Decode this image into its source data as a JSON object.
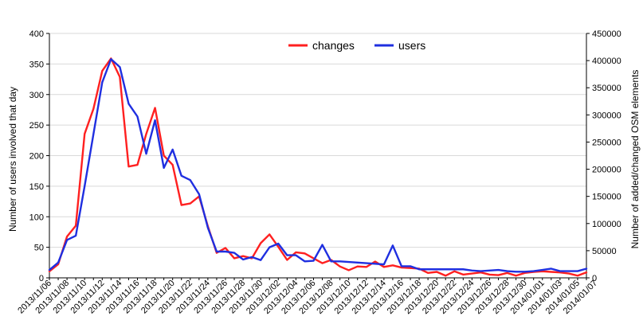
{
  "chart_data": {
    "type": "line",
    "title": "",
    "xlabel": "",
    "ylabel": "Number of users involved that day",
    "y2label": "Number of added/changed OSM elements",
    "ylim": [
      0,
      400
    ],
    "y2lim": [
      0,
      450000
    ],
    "yticks": [
      0,
      50,
      100,
      150,
      200,
      250,
      300,
      350,
      400
    ],
    "y2ticks": [
      0,
      50000,
      100000,
      150000,
      200000,
      250000,
      300000,
      350000,
      400000,
      450000
    ],
    "grid": "horizontal",
    "legend": "top-center",
    "start_date": "2013/11/06",
    "x_tick_labels": [
      "2013/11/06",
      "2013/11/08",
      "2013/11/10",
      "2013/11/12",
      "2013/11/14",
      "2013/11/16",
      "2013/11/18",
      "2013/11/20",
      "2013/11/22",
      "2013/11/24",
      "2013/11/26",
      "2013/11/28",
      "2013/11/30",
      "2013/12/02",
      "2013/12/04",
      "2013/12/06",
      "2013/12/08",
      "2013/12/10",
      "2013/12/12",
      "2013/12/14",
      "2013/12/16",
      "2013/12/18",
      "2013/12/20",
      "2013/12/22",
      "2013/12/24",
      "2013/12/26",
      "2013/12/28",
      "2013/12/30",
      "2014/01/01",
      "2014/01/03",
      "2014/01/05",
      "2014/01/07"
    ],
    "series": [
      {
        "name": "changes",
        "axis": "right",
        "color": "#ff2020",
        "values": [
          12000,
          25000,
          76000,
          96000,
          265000,
          311000,
          381000,
          404000,
          370000,
          205000,
          208000,
          265000,
          313000,
          225000,
          208000,
          134000,
          137000,
          150000,
          95000,
          46000,
          55000,
          36000,
          40000,
          36000,
          64000,
          80000,
          57000,
          33000,
          47000,
          45000,
          36000,
          27000,
          33000,
          21000,
          14000,
          21000,
          20000,
          30000,
          20000,
          23000,
          19000,
          18000,
          17000,
          9000,
          11000,
          4000,
          12000,
          6000,
          8000,
          10000,
          6000,
          5000,
          9000,
          4000,
          9000,
          11000,
          12000,
          11000,
          10000,
          8000,
          4000,
          10000
        ]
      },
      {
        "name": "users",
        "axis": "left",
        "color": "#1f2fe0",
        "values": [
          13,
          25,
          62,
          69,
          150,
          235,
          320,
          358,
          345,
          285,
          264,
          203,
          258,
          180,
          210,
          167,
          160,
          137,
          82,
          43,
          43,
          41,
          30,
          34,
          29,
          50,
          56,
          37,
          37,
          27,
          28,
          54,
          27,
          27,
          26,
          25,
          24,
          23,
          22,
          53,
          19,
          19,
          14,
          14,
          14,
          14,
          14,
          14,
          12,
          11,
          12,
          13,
          11,
          10,
          10,
          11,
          13,
          15,
          11,
          11,
          11,
          15
        ]
      }
    ]
  }
}
